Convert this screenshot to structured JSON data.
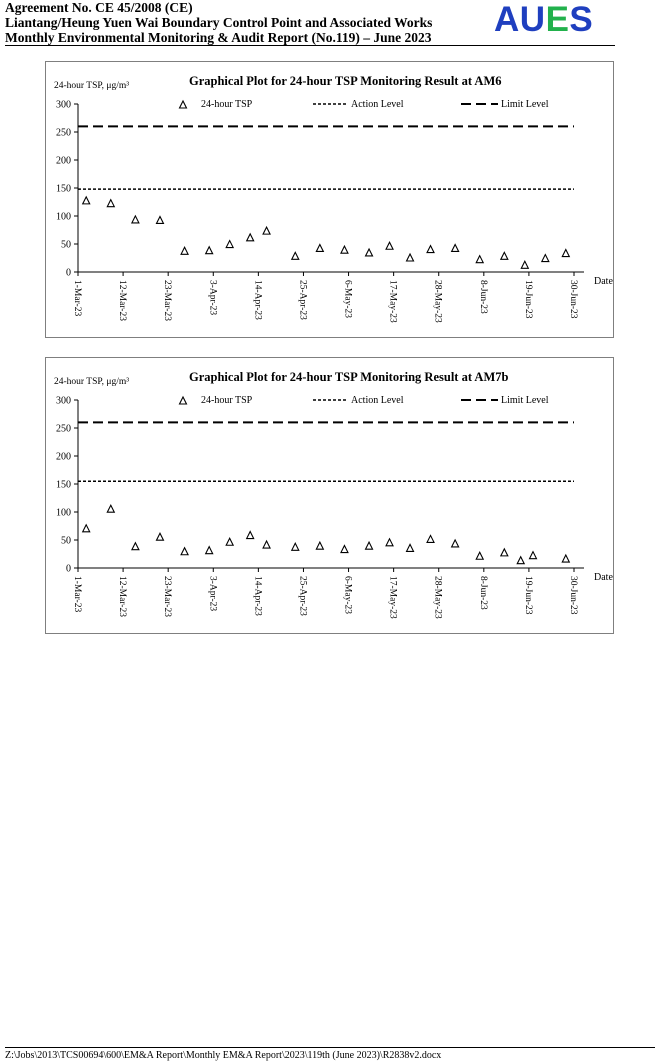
{
  "header": {
    "line1": "Agreement No. CE 45/2008 (CE)",
    "line2": "Liantang/Heung Yuen Wai Boundary Control Point and Associated Works",
    "line3": "Monthly Environmental Monitoring & Audit Report (No.119) – June 2023",
    "logo_letters": [
      "A",
      "U",
      "E",
      "S"
    ],
    "logo_colors": [
      "#1f3fbf",
      "#1f3fbf",
      "#22b14c",
      "#1f3fbf"
    ]
  },
  "chart_data": [
    {
      "type": "scatter",
      "title": "Graphical Plot for 24-hour TSP Monitoring Result at AM6",
      "ylabel": "24-hour TSP, μg/m³",
      "xlabel": "Date",
      "ylim": [
        0,
        300
      ],
      "yticks": [
        0,
        50,
        100,
        150,
        200,
        250,
        300
      ],
      "xticks": [
        "2023-03-01",
        "2023-03-12",
        "2023-03-23",
        "2023-04-03",
        "2023-04-14",
        "2023-04-25",
        "2023-05-06",
        "2023-05-17",
        "2023-05-28",
        "2023-06-08",
        "2023-06-19",
        "2023-06-30"
      ],
      "xtick_labels": [
        "1-Mar-23",
        "12-Mar-23",
        "23-Mar-23",
        "3-Apr-23",
        "14-Apr-23",
        "25-Apr-23",
        "6-May-23",
        "17-May-23",
        "28-May-23",
        "8-Jun-23",
        "19-Jun-23",
        "30-Jun-23"
      ],
      "legend": [
        "24-hour TSP",
        "Action Level",
        "Limit Level"
      ],
      "action_level": 148,
      "limit_level": 260,
      "series": [
        {
          "name": "24-hour TSP",
          "x": [
            "2023-03-03",
            "2023-03-09",
            "2023-03-15",
            "2023-03-21",
            "2023-03-27",
            "2023-04-02",
            "2023-04-07",
            "2023-04-12",
            "2023-04-16",
            "2023-04-23",
            "2023-04-29",
            "2023-05-05",
            "2023-05-11",
            "2023-05-16",
            "2023-05-21",
            "2023-05-26",
            "2023-06-01",
            "2023-06-07",
            "2023-06-13",
            "2023-06-18",
            "2023-06-23",
            "2023-06-28"
          ],
          "y": [
            127,
            122,
            93,
            92,
            37,
            38,
            49,
            61,
            73,
            28,
            42,
            39,
            34,
            46,
            25,
            40,
            42,
            22,
            28,
            12,
            24,
            33
          ]
        }
      ]
    },
    {
      "type": "scatter",
      "title": "Graphical Plot for 24-hour TSP Monitoring Result at AM7b",
      "ylabel": "24-hour TSP, μg/m³",
      "xlabel": "Date",
      "ylim": [
        0,
        300
      ],
      "yticks": [
        0,
        50,
        100,
        150,
        200,
        250,
        300
      ],
      "xticks": [
        "2023-03-01",
        "2023-03-12",
        "2023-03-23",
        "2023-04-03",
        "2023-04-14",
        "2023-04-25",
        "2023-05-06",
        "2023-05-17",
        "2023-05-28",
        "2023-06-08",
        "2023-06-19",
        "2023-06-30"
      ],
      "xtick_labels": [
        "1-Mar-23",
        "12-Mar-23",
        "23-Mar-23",
        "3-Apr-23",
        "14-Apr-23",
        "25-Apr-23",
        "6-May-23",
        "17-May-23",
        "28-May-23",
        "8-Jun-23",
        "19-Jun-23",
        "30-Jun-23"
      ],
      "legend": [
        "24-hour TSP",
        "Action Level",
        "Limit Level"
      ],
      "action_level": 155,
      "limit_level": 260,
      "series": [
        {
          "name": "24-hour TSP",
          "x": [
            "2023-03-03",
            "2023-03-09",
            "2023-03-15",
            "2023-03-21",
            "2023-03-27",
            "2023-04-02",
            "2023-04-07",
            "2023-04-12",
            "2023-04-16",
            "2023-04-23",
            "2023-04-29",
            "2023-05-05",
            "2023-05-11",
            "2023-05-16",
            "2023-05-21",
            "2023-05-26",
            "2023-06-01",
            "2023-06-07",
            "2023-06-13",
            "2023-06-17",
            "2023-06-20",
            "2023-06-28"
          ],
          "y": [
            70,
            105,
            38,
            55,
            29,
            31,
            46,
            58,
            41,
            37,
            39,
            33,
            39,
            45,
            35,
            51,
            43,
            21,
            27,
            13,
            22,
            16
          ]
        }
      ]
    }
  ],
  "footer": {
    "path": "Z:\\Jobs\\2013\\TCS00694\\600\\EM&A Report\\Monthly EM&A Report\\2023\\119th (June 2023)\\R2838v2.docx"
  }
}
